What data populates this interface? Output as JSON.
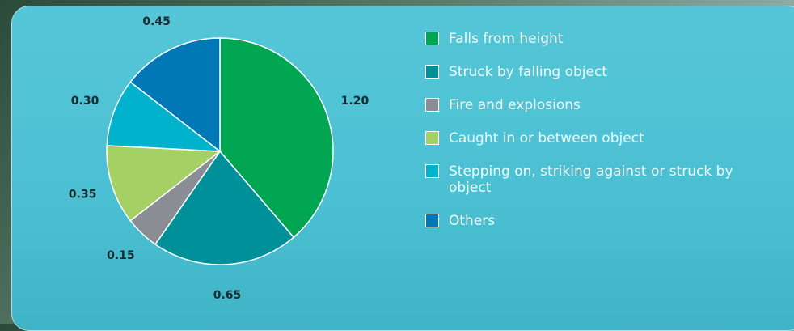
{
  "chart_data": {
    "type": "pie",
    "categories": [
      "Falls from height",
      "Struck by falling object",
      "Fire and explosions",
      "Caught in or between object",
      "Stepping on, striking against or struck by object",
      "Others"
    ],
    "values": [
      1.2,
      0.65,
      0.15,
      0.35,
      0.3,
      0.45
    ],
    "value_labels": [
      "1.20",
      "0.65",
      "0.15",
      "0.35",
      "0.30",
      "0.45"
    ],
    "colors": [
      "#00a651",
      "#00909a",
      "#8b8d95",
      "#a5d064",
      "#00b2cc",
      "#0078b6"
    ]
  }
}
